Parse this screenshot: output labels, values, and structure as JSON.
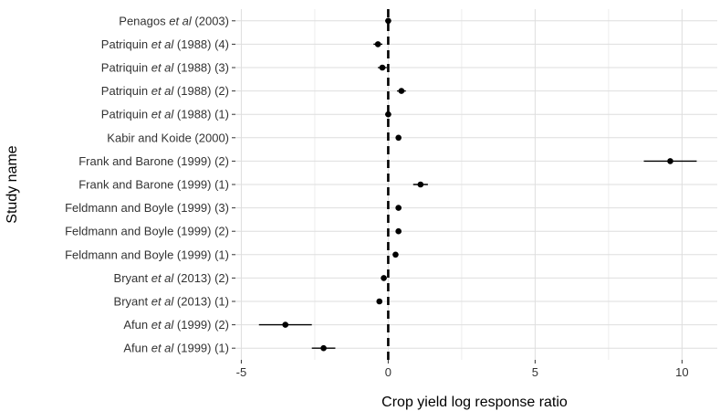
{
  "chart_data": {
    "type": "forest",
    "xlabel": "Crop yield log response ratio",
    "ylabel": "Study name",
    "xlim": [
      -5.2,
      11.2
    ],
    "xticks": [
      -5,
      0,
      5,
      10
    ],
    "xtick_labels": [
      "-5",
      "0",
      "5",
      "10"
    ],
    "reference_line": 0,
    "grid": true,
    "colors": {
      "point": "#000000",
      "grid": "#dedede",
      "reference": "#000000"
    },
    "studies": [
      {
        "name": [
          {
            "t": "Penagos "
          },
          {
            "t": "et al",
            "i": true
          },
          {
            "t": " (2003)"
          }
        ],
        "estimate": 0.0,
        "ci": [
          -0.1,
          0.1
        ]
      },
      {
        "name": [
          {
            "t": "Patriquin "
          },
          {
            "t": "et al",
            "i": true
          },
          {
            "t": " (1988) (4)"
          }
        ],
        "estimate": -0.35,
        "ci": [
          -0.5,
          -0.2
        ]
      },
      {
        "name": [
          {
            "t": "Patriquin "
          },
          {
            "t": "et al",
            "i": true
          },
          {
            "t": " (1988) (3)"
          }
        ],
        "estimate": -0.2,
        "ci": [
          -0.35,
          -0.05
        ]
      },
      {
        "name": [
          {
            "t": "Patriquin "
          },
          {
            "t": "et al",
            "i": true
          },
          {
            "t": " (1988) (2)"
          }
        ],
        "estimate": 0.45,
        "ci": [
          0.3,
          0.6
        ]
      },
      {
        "name": [
          {
            "t": "Patriquin "
          },
          {
            "t": "et al",
            "i": true
          },
          {
            "t": " (1988) (1)"
          }
        ],
        "estimate": 0.0,
        "ci": [
          -0.1,
          0.1
        ]
      },
      {
        "name": [
          {
            "t": "Kabir and Koide (2000)"
          }
        ],
        "estimate": 0.35,
        "ci": [
          0.3,
          0.4
        ]
      },
      {
        "name": [
          {
            "t": "Frank and Barone (1999) (2)"
          }
        ],
        "estimate": 9.6,
        "ci": [
          8.7,
          10.5
        ]
      },
      {
        "name": [
          {
            "t": "Frank and Barone (1999) (1)"
          }
        ],
        "estimate": 1.1,
        "ci": [
          0.85,
          1.35
        ]
      },
      {
        "name": [
          {
            "t": "Feldmann and Boyle (1999) (3)"
          }
        ],
        "estimate": 0.35,
        "ci": [
          0.3,
          0.4
        ]
      },
      {
        "name": [
          {
            "t": "Feldmann and Boyle (1999) (2)"
          }
        ],
        "estimate": 0.35,
        "ci": [
          0.3,
          0.4
        ]
      },
      {
        "name": [
          {
            "t": "Feldmann and Boyle (1999) (1)"
          }
        ],
        "estimate": 0.25,
        "ci": [
          0.2,
          0.3
        ]
      },
      {
        "name": [
          {
            "t": "Bryant "
          },
          {
            "t": "et al",
            "i": true
          },
          {
            "t": " (2013) (2)"
          }
        ],
        "estimate": -0.15,
        "ci": [
          -0.25,
          -0.05
        ]
      },
      {
        "name": [
          {
            "t": "Bryant "
          },
          {
            "t": "et al",
            "i": true
          },
          {
            "t": " (2013) (1)"
          }
        ],
        "estimate": -0.3,
        "ci": [
          -0.4,
          -0.2
        ]
      },
      {
        "name": [
          {
            "t": "Afun "
          },
          {
            "t": "et al",
            "i": true
          },
          {
            "t": " (1999) (2)"
          }
        ],
        "estimate": -3.5,
        "ci": [
          -4.4,
          -2.6
        ]
      },
      {
        "name": [
          {
            "t": "Afun "
          },
          {
            "t": "et al",
            "i": true
          },
          {
            "t": " (1999) (1)"
          }
        ],
        "estimate": -2.2,
        "ci": [
          -2.6,
          -1.8
        ]
      }
    ]
  }
}
